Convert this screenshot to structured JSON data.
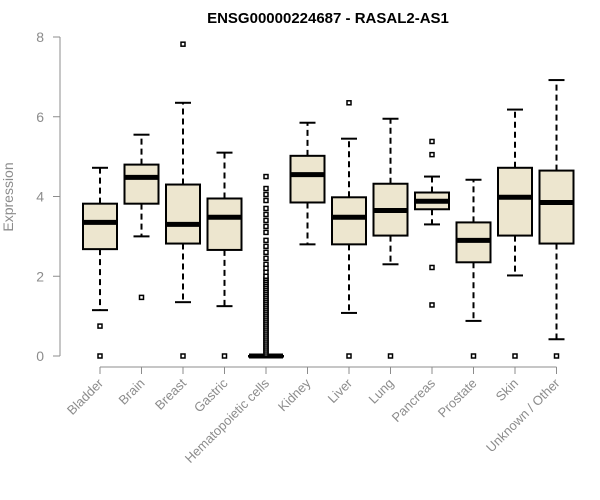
{
  "chart_data": {
    "type": "boxplot",
    "title": "ENSG00000224687 - RASAL2-AS1",
    "xlabel": "",
    "ylabel": "Expression",
    "ylim": [
      0,
      8
    ],
    "yticks": [
      0,
      2,
      4,
      6,
      8
    ],
    "box_fill": "#ede6cf",
    "categories": [
      "Bladder",
      "Brain",
      "Breast",
      "Gastric",
      "Hematopoietic cells",
      "Kidney",
      "Liver",
      "Lung",
      "Pancreas",
      "Prostate",
      "Skin",
      "Unknown / Other"
    ],
    "boxes": [
      {
        "category": "Bladder",
        "whisker_low": 1.15,
        "q1": 2.68,
        "median": 3.35,
        "q3": 3.82,
        "whisker_high": 4.72,
        "outliers": [
          0,
          0.75
        ]
      },
      {
        "category": "Brain",
        "whisker_low": 3.0,
        "q1": 3.82,
        "median": 4.48,
        "q3": 4.8,
        "whisker_high": 5.55,
        "outliers": [
          1.47
        ]
      },
      {
        "category": "Breast",
        "whisker_low": 1.35,
        "q1": 2.82,
        "median": 3.3,
        "q3": 4.3,
        "whisker_high": 6.35,
        "outliers": [
          0,
          7.82
        ]
      },
      {
        "category": "Gastric",
        "whisker_low": 1.25,
        "q1": 2.66,
        "median": 3.48,
        "q3": 3.95,
        "whisker_high": 5.1,
        "outliers": [
          0
        ]
      },
      {
        "category": "Hematopoietic cells",
        "whisker_low": 0,
        "q1": 0,
        "median": 0,
        "q3": 0,
        "whisker_high": 0,
        "outliers": [
          0.05,
          0.1,
          0.15,
          0.2,
          0.25,
          0.3,
          0.35,
          0.4,
          0.45,
          0.5,
          0.55,
          0.6,
          0.65,
          0.7,
          0.75,
          0.8,
          0.85,
          0.9,
          0.95,
          1.0,
          1.05,
          1.1,
          1.15,
          1.2,
          1.25,
          1.3,
          1.35,
          1.4,
          1.45,
          1.5,
          1.55,
          1.6,
          1.65,
          1.7,
          1.75,
          1.8,
          1.85,
          1.9,
          1.95,
          2.0,
          2.1,
          2.2,
          2.3,
          2.45,
          2.6,
          2.75,
          2.9,
          3.1,
          3.25,
          3.4,
          3.55,
          3.7,
          3.9,
          4.05,
          4.2,
          4.5
        ]
      },
      {
        "category": "Kidney",
        "whisker_low": 2.8,
        "q1": 3.85,
        "median": 4.55,
        "q3": 5.02,
        "whisker_high": 5.85,
        "outliers": []
      },
      {
        "category": "Liver",
        "whisker_low": 1.08,
        "q1": 2.8,
        "median": 3.48,
        "q3": 3.98,
        "whisker_high": 5.45,
        "outliers": [
          0,
          6.35
        ]
      },
      {
        "category": "Lung",
        "whisker_low": 2.3,
        "q1": 3.02,
        "median": 3.65,
        "q3": 4.32,
        "whisker_high": 5.95,
        "outliers": [
          0
        ]
      },
      {
        "category": "Pancreas",
        "whisker_low": 3.3,
        "q1": 3.68,
        "median": 3.88,
        "q3": 4.1,
        "whisker_high": 4.5,
        "outliers": [
          1.28,
          2.22,
          5.05,
          5.38
        ]
      },
      {
        "category": "Prostate",
        "whisker_low": 0.88,
        "q1": 2.35,
        "median": 2.9,
        "q3": 3.35,
        "whisker_high": 4.42,
        "outliers": [
          0
        ]
      },
      {
        "category": "Skin",
        "whisker_low": 2.02,
        "q1": 3.02,
        "median": 3.98,
        "q3": 4.72,
        "whisker_high": 6.18,
        "outliers": [
          0
        ]
      },
      {
        "category": "Unknown / Other",
        "whisker_low": 0.42,
        "q1": 2.82,
        "median": 3.85,
        "q3": 4.65,
        "whisker_high": 6.92,
        "outliers": [
          0
        ]
      }
    ]
  }
}
